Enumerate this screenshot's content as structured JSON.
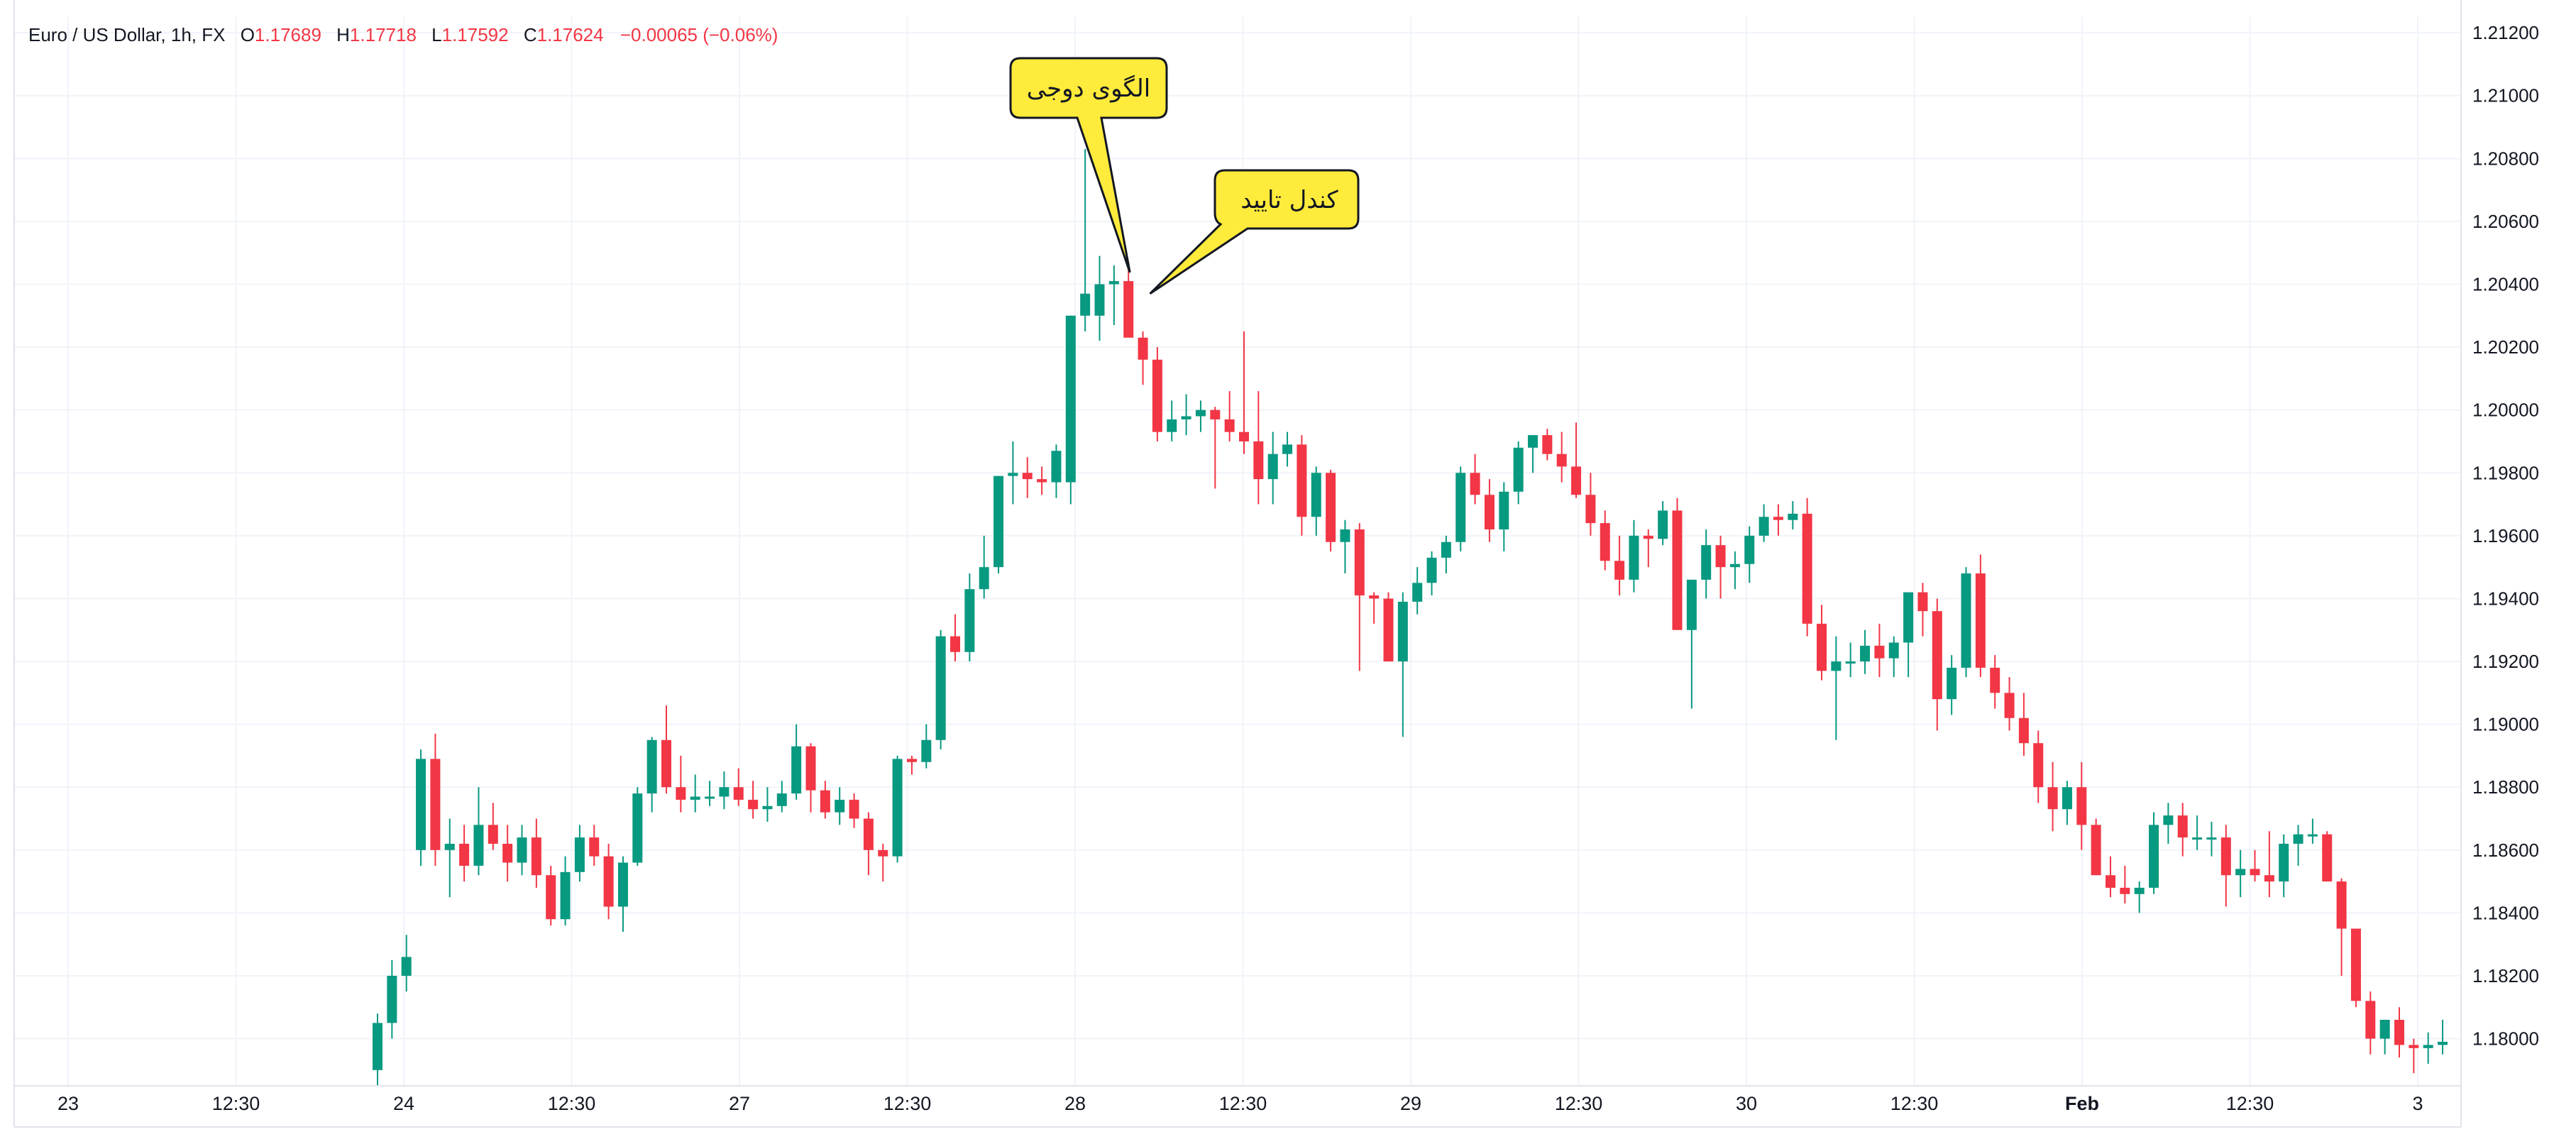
{
  "legend": {
    "symbol": "Euro / US Dollar, 1h, FX",
    "o_label": "O",
    "o": "1.17689",
    "h_label": "H",
    "h": "1.17718",
    "l_label": "L",
    "l": "1.17592",
    "c_label": "C",
    "c": "1.17624",
    "change": "−0.00065 (−0.06%)"
  },
  "colors": {
    "up": "#089981",
    "down": "#f23645",
    "grid": "#f0f3fa",
    "axis_text": "#131722",
    "callout_fill": "#ffeb3b",
    "callout_stroke": "#131722"
  },
  "callouts": [
    {
      "text": "الگوی دوجی",
      "points_to_bar": 52
    },
    {
      "text": "کندل تایید",
      "points_to_bar": 53
    }
  ],
  "chart_data": {
    "type": "candlestick",
    "title": "Euro / US Dollar, 1h, FX",
    "xlabel": "",
    "ylabel": "",
    "ylim": [
      1.1785,
      1.2125
    ],
    "grid": true,
    "x_tick_labels": [
      "23",
      "12:30",
      "24",
      "12:30",
      "27",
      "12:30",
      "28",
      "12:30",
      "29",
      "12:30",
      "30",
      "12:30",
      "Feb",
      "12:30",
      "3"
    ],
    "y_tick_labels": [
      "1.21200",
      "1.21000",
      "1.20800",
      "1.20600",
      "1.20400",
      "1.20200",
      "1.20000",
      "1.19800",
      "1.19600",
      "1.19400",
      "1.19200",
      "1.19000",
      "1.18800",
      "1.18600",
      "1.18400",
      "1.18200",
      "1.18000"
    ],
    "series": [
      {
        "values": [
          {
            "o": 1.179,
            "h": 1.1808,
            "l": 1.1782,
            "c": 1.1805
          },
          {
            "o": 1.1805,
            "h": 1.1825,
            "l": 1.18,
            "c": 1.182
          },
          {
            "o": 1.182,
            "h": 1.1833,
            "l": 1.1815,
            "c": 1.1826
          },
          {
            "o": 1.186,
            "h": 1.1892,
            "l": 1.1855,
            "c": 1.1889
          },
          {
            "o": 1.1889,
            "h": 1.1897,
            "l": 1.1855,
            "c": 1.186
          },
          {
            "o": 1.186,
            "h": 1.187,
            "l": 1.1845,
            "c": 1.1862
          },
          {
            "o": 1.1862,
            "h": 1.1868,
            "l": 1.185,
            "c": 1.1855
          },
          {
            "o": 1.1855,
            "h": 1.188,
            "l": 1.1852,
            "c": 1.1868
          },
          {
            "o": 1.1868,
            "h": 1.1875,
            "l": 1.186,
            "c": 1.1862
          },
          {
            "o": 1.1862,
            "h": 1.1868,
            "l": 1.185,
            "c": 1.1856
          },
          {
            "o": 1.1856,
            "h": 1.1868,
            "l": 1.1852,
            "c": 1.1864
          },
          {
            "o": 1.1864,
            "h": 1.187,
            "l": 1.1848,
            "c": 1.1852
          },
          {
            "o": 1.1852,
            "h": 1.1855,
            "l": 1.1836,
            "c": 1.1838
          },
          {
            "o": 1.1838,
            "h": 1.1858,
            "l": 1.1836,
            "c": 1.1853
          },
          {
            "o": 1.1853,
            "h": 1.1868,
            "l": 1.185,
            "c": 1.1864
          },
          {
            "o": 1.1864,
            "h": 1.1868,
            "l": 1.1855,
            "c": 1.1858
          },
          {
            "o": 1.1858,
            "h": 1.1862,
            "l": 1.1838,
            "c": 1.1842
          },
          {
            "o": 1.1842,
            "h": 1.1858,
            "l": 1.1834,
            "c": 1.1856
          },
          {
            "o": 1.1856,
            "h": 1.188,
            "l": 1.1855,
            "c": 1.1878
          },
          {
            "o": 1.1878,
            "h": 1.1896,
            "l": 1.1872,
            "c": 1.1895
          },
          {
            "o": 1.1895,
            "h": 1.1906,
            "l": 1.1878,
            "c": 1.188
          },
          {
            "o": 1.188,
            "h": 1.189,
            "l": 1.1872,
            "c": 1.1876
          },
          {
            "o": 1.1876,
            "h": 1.1884,
            "l": 1.1872,
            "c": 1.1877
          },
          {
            "o": 1.1877,
            "h": 1.1882,
            "l": 1.1874,
            "c": 1.1877
          },
          {
            "o": 1.1877,
            "h": 1.1885,
            "l": 1.1873,
            "c": 1.188
          },
          {
            "o": 1.188,
            "h": 1.1886,
            "l": 1.1874,
            "c": 1.1876
          },
          {
            "o": 1.1876,
            "h": 1.1882,
            "l": 1.187,
            "c": 1.1873
          },
          {
            "o": 1.1873,
            "h": 1.188,
            "l": 1.1869,
            "c": 1.1874
          },
          {
            "o": 1.1874,
            "h": 1.1882,
            "l": 1.1872,
            "c": 1.1878
          },
          {
            "o": 1.1878,
            "h": 1.19,
            "l": 1.1876,
            "c": 1.1893
          },
          {
            "o": 1.1893,
            "h": 1.1894,
            "l": 1.1872,
            "c": 1.1879
          },
          {
            "o": 1.1879,
            "h": 1.1882,
            "l": 1.187,
            "c": 1.1872
          },
          {
            "o": 1.1872,
            "h": 1.188,
            "l": 1.1868,
            "c": 1.1876
          },
          {
            "o": 1.1876,
            "h": 1.1878,
            "l": 1.1867,
            "c": 1.187
          },
          {
            "o": 1.187,
            "h": 1.1872,
            "l": 1.1852,
            "c": 1.186
          },
          {
            "o": 1.186,
            "h": 1.1862,
            "l": 1.185,
            "c": 1.1858
          },
          {
            "o": 1.1858,
            "h": 1.189,
            "l": 1.1856,
            "c": 1.1889
          },
          {
            "o": 1.1889,
            "h": 1.189,
            "l": 1.1884,
            "c": 1.1888
          },
          {
            "o": 1.1888,
            "h": 1.19,
            "l": 1.1886,
            "c": 1.1895
          },
          {
            "o": 1.1895,
            "h": 1.193,
            "l": 1.1892,
            "c": 1.1928
          },
          {
            "o": 1.1928,
            "h": 1.1935,
            "l": 1.192,
            "c": 1.1923
          },
          {
            "o": 1.1923,
            "h": 1.1948,
            "l": 1.192,
            "c": 1.1943
          },
          {
            "o": 1.1943,
            "h": 1.196,
            "l": 1.194,
            "c": 1.195
          },
          {
            "o": 1.195,
            "h": 1.1978,
            "l": 1.1948,
            "c": 1.1979
          },
          {
            "o": 1.1979,
            "h": 1.199,
            "l": 1.197,
            "c": 1.198
          },
          {
            "o": 1.198,
            "h": 1.1985,
            "l": 1.1972,
            "c": 1.1978
          },
          {
            "o": 1.1978,
            "h": 1.1982,
            "l": 1.1973,
            "c": 1.1977
          },
          {
            "o": 1.1977,
            "h": 1.1989,
            "l": 1.1972,
            "c": 1.1987
          },
          {
            "o": 1.1977,
            "h": 1.2005,
            "l": 1.197,
            "c": 1.203
          },
          {
            "o": 1.203,
            "h": 1.2083,
            "l": 1.2025,
            "c": 1.2037
          },
          {
            "o": 1.203,
            "h": 1.2049,
            "l": 1.2022,
            "c": 1.204
          },
          {
            "o": 1.204,
            "h": 1.2046,
            "l": 1.2027,
            "c": 1.2041
          },
          {
            "o": 1.2041,
            "h": 1.2047,
            "l": 1.203,
            "c": 1.2023
          },
          {
            "o": 1.2023,
            "h": 1.2025,
            "l": 1.2008,
            "c": 1.2016
          },
          {
            "o": 1.2016,
            "h": 1.202,
            "l": 1.199,
            "c": 1.1993
          },
          {
            "o": 1.1993,
            "h": 1.2003,
            "l": 1.199,
            "c": 1.1997
          },
          {
            "o": 1.1997,
            "h": 1.2005,
            "l": 1.1992,
            "c": 1.1998
          },
          {
            "o": 1.1998,
            "h": 1.2003,
            "l": 1.1993,
            "c": 1.2
          },
          {
            "o": 1.2,
            "h": 1.2001,
            "l": 1.1975,
            "c": 1.1997
          },
          {
            "o": 1.1997,
            "h": 1.2006,
            "l": 1.199,
            "c": 1.1993
          },
          {
            "o": 1.1993,
            "h": 1.2025,
            "l": 1.1986,
            "c": 1.199
          },
          {
            "o": 1.199,
            "h": 1.2006,
            "l": 1.197,
            "c": 1.1978
          },
          {
            "o": 1.1978,
            "h": 1.1993,
            "l": 1.197,
            "c": 1.1986
          },
          {
            "o": 1.1986,
            "h": 1.1993,
            "l": 1.1982,
            "c": 1.1989
          },
          {
            "o": 1.1989,
            "h": 1.1992,
            "l": 1.196,
            "c": 1.1966
          },
          {
            "o": 1.1966,
            "h": 1.1982,
            "l": 1.196,
            "c": 1.198
          },
          {
            "o": 1.198,
            "h": 1.1981,
            "l": 1.1955,
            "c": 1.1958
          },
          {
            "o": 1.1958,
            "h": 1.1965,
            "l": 1.1948,
            "c": 1.1962
          },
          {
            "o": 1.1962,
            "h": 1.1964,
            "l": 1.1917,
            "c": 1.1941
          },
          {
            "o": 1.1941,
            "h": 1.1942,
            "l": 1.1932,
            "c": 1.194
          },
          {
            "o": 1.194,
            "h": 1.1942,
            "l": 1.1923,
            "c": 1.192
          },
          {
            "o": 1.192,
            "h": 1.1942,
            "l": 1.1896,
            "c": 1.1939
          },
          {
            "o": 1.1939,
            "h": 1.195,
            "l": 1.1935,
            "c": 1.1945
          },
          {
            "o": 1.1945,
            "h": 1.1955,
            "l": 1.1941,
            "c": 1.1953
          },
          {
            "o": 1.1953,
            "h": 1.196,
            "l": 1.1948,
            "c": 1.1958
          },
          {
            "o": 1.1958,
            "h": 1.1982,
            "l": 1.1955,
            "c": 1.198
          },
          {
            "o": 1.198,
            "h": 1.1986,
            "l": 1.197,
            "c": 1.1973
          },
          {
            "o": 1.1973,
            "h": 1.1978,
            "l": 1.1958,
            "c": 1.1962
          },
          {
            "o": 1.1962,
            "h": 1.1977,
            "l": 1.1955,
            "c": 1.1974
          },
          {
            "o": 1.1974,
            "h": 1.199,
            "l": 1.197,
            "c": 1.1988
          },
          {
            "o": 1.1988,
            "h": 1.1992,
            "l": 1.198,
            "c": 1.1992
          },
          {
            "o": 1.1992,
            "h": 1.1994,
            "l": 1.1984,
            "c": 1.1986
          },
          {
            "o": 1.1986,
            "h": 1.1993,
            "l": 1.1977,
            "c": 1.1982
          },
          {
            "o": 1.1982,
            "h": 1.1996,
            "l": 1.1972,
            "c": 1.1973
          },
          {
            "o": 1.1973,
            "h": 1.198,
            "l": 1.196,
            "c": 1.1964
          },
          {
            "o": 1.1964,
            "h": 1.1968,
            "l": 1.1949,
            "c": 1.1952
          },
          {
            "o": 1.1952,
            "h": 1.196,
            "l": 1.1941,
            "c": 1.1946
          },
          {
            "o": 1.1946,
            "h": 1.1965,
            "l": 1.1942,
            "c": 1.196
          },
          {
            "o": 1.196,
            "h": 1.1962,
            "l": 1.195,
            "c": 1.1959
          },
          {
            "o": 1.1959,
            "h": 1.1971,
            "l": 1.1957,
            "c": 1.1968
          },
          {
            "o": 1.1968,
            "h": 1.1972,
            "l": 1.193,
            "c": 1.193
          },
          {
            "o": 1.193,
            "h": 1.1936,
            "l": 1.1905,
            "c": 1.1946
          },
          {
            "o": 1.1946,
            "h": 1.1962,
            "l": 1.194,
            "c": 1.1957
          },
          {
            "o": 1.1957,
            "h": 1.196,
            "l": 1.194,
            "c": 1.195
          },
          {
            "o": 1.195,
            "h": 1.1955,
            "l": 1.1943,
            "c": 1.1951
          },
          {
            "o": 1.1951,
            "h": 1.1963,
            "l": 1.1945,
            "c": 1.196
          },
          {
            "o": 1.196,
            "h": 1.197,
            "l": 1.1958,
            "c": 1.1966
          },
          {
            "o": 1.1966,
            "h": 1.197,
            "l": 1.196,
            "c": 1.1965
          },
          {
            "o": 1.1965,
            "h": 1.1971,
            "l": 1.1962,
            "c": 1.1967
          },
          {
            "o": 1.1967,
            "h": 1.1972,
            "l": 1.1928,
            "c": 1.1932
          },
          {
            "o": 1.1932,
            "h": 1.1938,
            "l": 1.1914,
            "c": 1.1917
          },
          {
            "o": 1.1917,
            "h": 1.1928,
            "l": 1.1895,
            "c": 1.192
          },
          {
            "o": 1.192,
            "h": 1.1926,
            "l": 1.1915,
            "c": 1.192
          },
          {
            "o": 1.192,
            "h": 1.193,
            "l": 1.1916,
            "c": 1.1925
          },
          {
            "o": 1.1925,
            "h": 1.1932,
            "l": 1.1915,
            "c": 1.1921
          },
          {
            "o": 1.1921,
            "h": 1.1928,
            "l": 1.1915,
            "c": 1.1926
          },
          {
            "o": 1.1926,
            "h": 1.194,
            "l": 1.1915,
            "c": 1.1942
          },
          {
            "o": 1.1942,
            "h": 1.1945,
            "l": 1.1928,
            "c": 1.1936
          },
          {
            "o": 1.1936,
            "h": 1.194,
            "l": 1.1898,
            "c": 1.1908
          },
          {
            "o": 1.1908,
            "h": 1.1922,
            "l": 1.1903,
            "c": 1.1918
          },
          {
            "o": 1.1918,
            "h": 1.195,
            "l": 1.1915,
            "c": 1.1948
          },
          {
            "o": 1.1948,
            "h": 1.1954,
            "l": 1.1915,
            "c": 1.1918
          },
          {
            "o": 1.1918,
            "h": 1.1922,
            "l": 1.1905,
            "c": 1.191
          },
          {
            "o": 1.191,
            "h": 1.1915,
            "l": 1.1898,
            "c": 1.1902
          },
          {
            "o": 1.1902,
            "h": 1.191,
            "l": 1.189,
            "c": 1.1894
          },
          {
            "o": 1.1894,
            "h": 1.1898,
            "l": 1.1875,
            "c": 1.188
          },
          {
            "o": 1.188,
            "h": 1.1888,
            "l": 1.1866,
            "c": 1.1873
          },
          {
            "o": 1.1873,
            "h": 1.1882,
            "l": 1.1868,
            "c": 1.188
          },
          {
            "o": 1.188,
            "h": 1.1888,
            "l": 1.186,
            "c": 1.1868
          },
          {
            "o": 1.1868,
            "h": 1.187,
            "l": 1.1852,
            "c": 1.1852
          },
          {
            "o": 1.1852,
            "h": 1.1858,
            "l": 1.1845,
            "c": 1.1848
          },
          {
            "o": 1.1848,
            "h": 1.1855,
            "l": 1.1843,
            "c": 1.1846
          },
          {
            "o": 1.1846,
            "h": 1.185,
            "l": 1.184,
            "c": 1.1848
          },
          {
            "o": 1.1848,
            "h": 1.1872,
            "l": 1.1846,
            "c": 1.1868
          },
          {
            "o": 1.1868,
            "h": 1.1875,
            "l": 1.1862,
            "c": 1.1871
          },
          {
            "o": 1.1871,
            "h": 1.1875,
            "l": 1.1858,
            "c": 1.1864
          },
          {
            "o": 1.1864,
            "h": 1.1871,
            "l": 1.186,
            "c": 1.1864
          },
          {
            "o": 1.1864,
            "h": 1.1869,
            "l": 1.1858,
            "c": 1.1864
          },
          {
            "o": 1.1864,
            "h": 1.1868,
            "l": 1.1842,
            "c": 1.1852
          },
          {
            "o": 1.1852,
            "h": 1.186,
            "l": 1.1845,
            "c": 1.1854
          },
          {
            "o": 1.1854,
            "h": 1.186,
            "l": 1.185,
            "c": 1.1852
          },
          {
            "o": 1.1852,
            "h": 1.1866,
            "l": 1.1845,
            "c": 1.185
          },
          {
            "o": 1.185,
            "h": 1.1865,
            "l": 1.1845,
            "c": 1.1862
          },
          {
            "o": 1.1862,
            "h": 1.1868,
            "l": 1.1855,
            "c": 1.1865
          },
          {
            "o": 1.1865,
            "h": 1.187,
            "l": 1.1862,
            "c": 1.1865
          },
          {
            "o": 1.1865,
            "h": 1.1866,
            "l": 1.185,
            "c": 1.185
          },
          {
            "o": 1.185,
            "h": 1.1851,
            "l": 1.182,
            "c": 1.1835
          },
          {
            "o": 1.1835,
            "h": 1.183,
            "l": 1.181,
            "c": 1.1812
          },
          {
            "o": 1.1812,
            "h": 1.1815,
            "l": 1.1795,
            "c": 1.18
          },
          {
            "o": 1.18,
            "h": 1.1804,
            "l": 1.1795,
            "c": 1.1806
          },
          {
            "o": 1.1806,
            "h": 1.181,
            "l": 1.1794,
            "c": 1.1798
          },
          {
            "o": 1.1798,
            "h": 1.18,
            "l": 1.1789,
            "c": 1.1797
          },
          {
            "o": 1.1797,
            "h": 1.1802,
            "l": 1.1792,
            "c": 1.1798
          },
          {
            "o": 1.1798,
            "h": 1.1806,
            "l": 1.1795,
            "c": 1.1799
          },
          {
            "o": 1.1799,
            "h": 1.1808,
            "l": 1.1798,
            "c": 1.1804
          }
        ]
      }
    ]
  }
}
